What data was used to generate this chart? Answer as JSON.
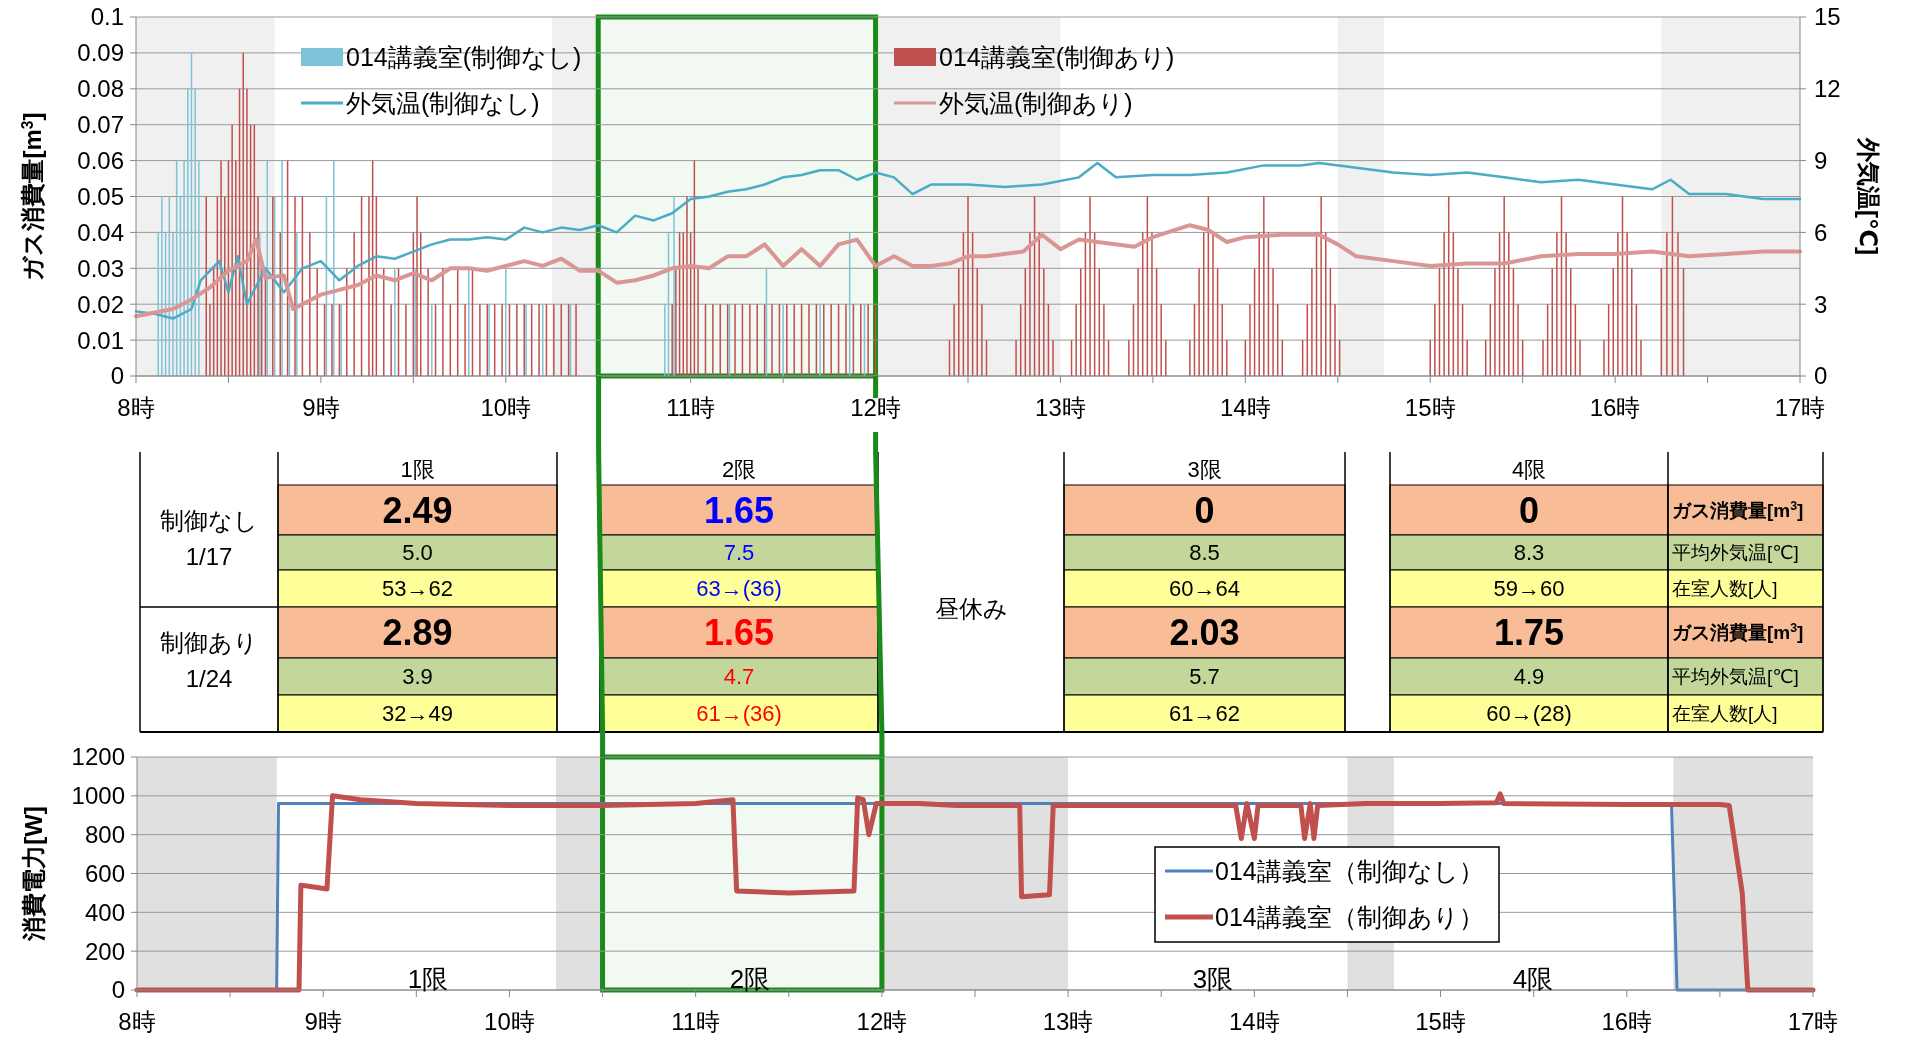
{
  "chart_data": [
    {
      "type": "bar",
      "xlim": [
        8,
        17
      ],
      "ylim": [
        0,
        0.1
      ],
      "y2lim": [
        0,
        15
      ],
      "xticks": [
        {
          "value": 8,
          "label": "8時"
        },
        {
          "value": 8.5,
          "label": null
        },
        {
          "value": 9,
          "label": "9時"
        },
        {
          "value": 9.5,
          "label": null
        },
        {
          "value": 10,
          "label": "10時"
        },
        {
          "value": 10.5,
          "label": null
        },
        {
          "value": 11,
          "label": "11時"
        },
        {
          "value": 11.5,
          "label": null
        },
        {
          "value": 12,
          "label": "12時"
        },
        {
          "value": 12.5,
          "label": null
        },
        {
          "value": 13,
          "label": "13時"
        },
        {
          "value": 13.5,
          "label": null
        },
        {
          "value": 14,
          "label": "14時"
        },
        {
          "value": 14.5,
          "label": null
        },
        {
          "value": 15,
          "label": "15時"
        },
        {
          "value": 15.5,
          "label": null
        },
        {
          "value": 16,
          "label": "16時"
        },
        {
          "value": 16.5,
          "label": null
        },
        {
          "value": 17,
          "label": "17時"
        }
      ],
      "yticks": [
        0,
        0.01,
        0.02,
        0.03,
        0.04,
        0.05,
        0.06,
        0.07,
        0.08,
        0.09,
        0.1
      ],
      "y2ticks": [
        0,
        3,
        6,
        9,
        12,
        15
      ],
      "ylabel": "ガス消費量[m$^{3}$]",
      "y2label": "外気温[℃]",
      "grid": "y",
      "legend": "top",
      "bands": [
        {
          "axis": "x",
          "from": 8,
          "to": 8.75,
          "color": "#f0f0f0"
        },
        {
          "axis": "x",
          "from": 10.25,
          "to": 10.5,
          "color": "#f0f0f0"
        },
        {
          "axis": "x",
          "from": 12,
          "to": 13,
          "color": "#f0f0f0"
        },
        {
          "axis": "x",
          "from": 14.5,
          "to": 14.75,
          "color": "#f0f0f0"
        },
        {
          "axis": "x",
          "from": 16.25,
          "to": 17,
          "color": "#f0f0f0"
        },
        {
          "axis": "x",
          "from": 10.5,
          "to": 12,
          "color": "#1a8a1a"
        }
      ],
      "series": [
        {
          "name": "014講義室(制御なし)",
          "type": "bar",
          "color": "#7fc3d8",
          "x": [
            8.12,
            8.14,
            8.16,
            8.18,
            8.2,
            8.22,
            8.24,
            8.26,
            8.28,
            8.3,
            8.32,
            8.34,
            8.67,
            8.71,
            8.75,
            8.79,
            8.83,
            8.87,
            9.03,
            9.07,
            9.11,
            9.4,
            9.51,
            9.6,
            9.8,
            9.91,
            10,
            10.11,
            10.2,
            10.35,
            10.86,
            10.88,
            10.91,
            11.21,
            11.41,
            11.5,
            11.7,
            11.86,
            11.94
          ],
          "values": [
            0.04,
            0.05,
            0.04,
            0.05,
            0.04,
            0.06,
            0.05,
            0.06,
            0.08,
            0.09,
            0.08,
            0.06,
            0.04,
            0.06,
            0.05,
            0.06,
            0.02,
            0.04,
            0.05,
            0.06,
            0.02,
            0.03,
            0.03,
            0.02,
            0.03,
            0.02,
            0.03,
            0.02,
            0.02,
            0.02,
            0.02,
            0.04,
            0.05,
            0.02,
            0.03,
            0.02,
            0.02,
            0.04,
            0.02
          ]
        },
        {
          "name": "014講義室(制御あり)",
          "type": "bar",
          "color": "#c0504d",
          "x": [
            8.38,
            8.4,
            8.42,
            8.44,
            8.46,
            8.48,
            8.5,
            8.52,
            8.54,
            8.56,
            8.58,
            8.6,
            8.62,
            8.64,
            8.66,
            8.68,
            8.7,
            8.74,
            8.78,
            8.82,
            8.86,
            8.9,
            8.94,
            8.98,
            9.02,
            9.06,
            9.1,
            9.14,
            9.18,
            9.22,
            9.26,
            9.28,
            9.3,
            9.34,
            9.38,
            9.42,
            9.46,
            9.5,
            9.52,
            9.54,
            9.58,
            9.62,
            9.66,
            9.7,
            9.74,
            9.78,
            9.82,
            9.86,
            9.9,
            9.94,
            9.98,
            10.02,
            10.06,
            10.1,
            10.14,
            10.18,
            10.22,
            10.26,
            10.3,
            10.34,
            10.38,
            10.9,
            10.92,
            10.94,
            10.96,
            10.98,
            11,
            11.02,
            11.04,
            11.08,
            11.12,
            11.16,
            11.2,
            11.24,
            11.28,
            11.32,
            11.36,
            11.4,
            11.44,
            11.48,
            11.52,
            11.56,
            11.6,
            11.64,
            11.68,
            11.72,
            11.76,
            11.8,
            11.84,
            11.88,
            11.92,
            11.96,
            12,
            12.4,
            12.425,
            12.45,
            12.475,
            12.5,
            12.525,
            12.55,
            12.575,
            12.6,
            12.76,
            12.785,
            12.81,
            12.835,
            12.86,
            12.885,
            12.91,
            12.935,
            12.96,
            13.06,
            13.085,
            13.11,
            13.135,
            13.16,
            13.185,
            13.21,
            13.235,
            13.26,
            13.37,
            13.395,
            13.42,
            13.445,
            13.47,
            13.495,
            13.52,
            13.545,
            13.57,
            13.7,
            13.725,
            13.75,
            13.775,
            13.8,
            13.825,
            13.85,
            13.875,
            13.9,
            14,
            14.025,
            14.05,
            14.075,
            14.1,
            14.125,
            14.15,
            14.175,
            14.2,
            14.31,
            14.335,
            14.36,
            14.385,
            14.41,
            14.435,
            14.46,
            14.485,
            14.51,
            15,
            15.025,
            15.05,
            15.075,
            15.1,
            15.125,
            15.15,
            15.175,
            15.2,
            15.3,
            15.325,
            15.35,
            15.375,
            15.4,
            15.425,
            15.45,
            15.475,
            15.5,
            15.61,
            15.635,
            15.66,
            15.685,
            15.71,
            15.735,
            15.76,
            15.785,
            15.81,
            15.94,
            15.965,
            15.99,
            16.015,
            16.04,
            16.065,
            16.09,
            16.115,
            16.14,
            16.25,
            16.28,
            16.31,
            16.34,
            16.37
          ],
          "values": [
            0.05,
            0.02,
            0.03,
            0.05,
            0.06,
            0.05,
            0.06,
            0.07,
            0.06,
            0.08,
            0.09,
            0.08,
            0.07,
            0.07,
            0.05,
            0.03,
            0.03,
            0.05,
            0.04,
            0.06,
            0.05,
            0.05,
            0.04,
            0.03,
            0.02,
            0.02,
            0.02,
            0.03,
            0.04,
            0.05,
            0.05,
            0.06,
            0.05,
            0.03,
            0.02,
            0.03,
            0.02,
            0.04,
            0.05,
            0.04,
            0.03,
            0.02,
            0.03,
            0.02,
            0.03,
            0.02,
            0.03,
            0.02,
            0.02,
            0.02,
            0.02,
            0.02,
            0.02,
            0.02,
            0.02,
            0.02,
            0.02,
            0.02,
            0.02,
            0.02,
            0.02,
            0.02,
            0.03,
            0.04,
            0.04,
            0.05,
            0.04,
            0.06,
            0.03,
            0.02,
            0.02,
            0.02,
            0.02,
            0.02,
            0.02,
            0.02,
            0.02,
            0.02,
            0.02,
            0.02,
            0.02,
            0.02,
            0.02,
            0.02,
            0.02,
            0.02,
            0.02,
            0.02,
            0.02,
            0.02,
            0.02,
            0.02,
            0.02,
            0.01,
            0.02,
            0.03,
            0.04,
            0.05,
            0.04,
            0.03,
            0.02,
            0.01,
            0.01,
            0.02,
            0.03,
            0.04,
            0.05,
            0.04,
            0.03,
            0.02,
            0.01,
            0.01,
            0.02,
            0.03,
            0.04,
            0.05,
            0.04,
            0.03,
            0.02,
            0.01,
            0.01,
            0.02,
            0.03,
            0.04,
            0.05,
            0.04,
            0.03,
            0.02,
            0.01,
            0.01,
            0.02,
            0.03,
            0.04,
            0.05,
            0.04,
            0.03,
            0.02,
            0.01,
            0.01,
            0.02,
            0.03,
            0.04,
            0.05,
            0.04,
            0.03,
            0.02,
            0.01,
            0.01,
            0.02,
            0.03,
            0.04,
            0.05,
            0.04,
            0.03,
            0.02,
            0.01,
            0.01,
            0.02,
            0.03,
            0.04,
            0.05,
            0.04,
            0.03,
            0.02,
            0.01,
            0.01,
            0.02,
            0.03,
            0.04,
            0.05,
            0.04,
            0.03,
            0.02,
            0.01,
            0.01,
            0.02,
            0.03,
            0.04,
            0.05,
            0.04,
            0.03,
            0.02,
            0.01,
            0.01,
            0.02,
            0.03,
            0.04,
            0.05,
            0.04,
            0.03,
            0.02,
            0.01,
            0.03,
            0.04,
            0.05,
            0.04,
            0.03
          ]
        },
        {
          "name": "外気温(制御なし)",
          "type": "line",
          "axis": "y2",
          "color": "#4bacc6",
          "x": [
            8,
            8.1,
            8.2,
            8.3,
            8.35,
            8.45,
            8.5,
            8.55,
            8.6,
            8.7,
            8.8,
            8.9,
            9,
            9.1,
            9.2,
            9.3,
            9.4,
            9.5,
            9.6,
            9.7,
            9.8,
            9.9,
            10,
            10.1,
            10.2,
            10.3,
            10.4,
            10.5,
            10.6,
            10.7,
            10.8,
            10.9,
            11,
            11.1,
            11.2,
            11.3,
            11.4,
            11.5,
            11.6,
            11.7,
            11.8,
            11.9,
            12,
            12.1,
            12.2,
            12.3,
            12.5,
            12.7,
            12.9,
            13.1,
            13.2,
            13.3,
            13.5,
            13.7,
            13.9,
            14.1,
            14.3,
            14.4,
            14.6,
            14.8,
            15,
            15.2,
            15.4,
            15.6,
            15.8,
            16,
            16.2,
            16.3,
            16.4,
            16.6,
            16.8,
            17
          ],
          "values": [
            2.7,
            2.6,
            2.4,
            2.8,
            4,
            4.8,
            3.5,
            5,
            3,
            4.5,
            3.5,
            4.5,
            4.8,
            4,
            4.6,
            5,
            4.9,
            5.2,
            5.5,
            5.7,
            5.7,
            5.8,
            5.7,
            6.2,
            6,
            6.2,
            6.1,
            6.3,
            6,
            6.7,
            6.5,
            6.8,
            7.4,
            7.5,
            7.7,
            7.8,
            8,
            8.3,
            8.4,
            8.6,
            8.6,
            8.2,
            8.5,
            8.3,
            7.6,
            8,
            8,
            7.9,
            8,
            8.3,
            8.9,
            8.3,
            8.4,
            8.4,
            8.5,
            8.8,
            8.8,
            8.9,
            8.7,
            8.5,
            8.4,
            8.5,
            8.3,
            8.1,
            8.2,
            8,
            7.8,
            8.2,
            7.6,
            7.6,
            7.4,
            7.4
          ]
        },
        {
          "name": "外気温(制御あり)",
          "type": "line",
          "axis": "y2",
          "color": "#d99694",
          "x": [
            8,
            8.2,
            8.3,
            8.4,
            8.5,
            8.6,
            8.65,
            8.7,
            8.8,
            8.85,
            8.9,
            9,
            9.1,
            9.2,
            9.3,
            9.4,
            9.5,
            9.6,
            9.7,
            9.8,
            9.9,
            10,
            10.1,
            10.2,
            10.3,
            10.4,
            10.5,
            10.6,
            10.7,
            10.8,
            10.9,
            11,
            11.1,
            11.2,
            11.3,
            11.4,
            11.5,
            11.6,
            11.7,
            11.8,
            11.9,
            12,
            12.1,
            12.2,
            12.3,
            12.4,
            12.5,
            12.6,
            12.8,
            12.9,
            13,
            13.1,
            13.2,
            13.4,
            13.5,
            13.7,
            13.8,
            13.9,
            14,
            14.2,
            14.4,
            14.5,
            14.6,
            14.8,
            15,
            15.2,
            15.4,
            15.6,
            15.8,
            16,
            16.2,
            16.4,
            16.6,
            16.8,
            17
          ],
          "values": [
            2.5,
            2.8,
            3.2,
            3.7,
            4.4,
            4.8,
            5.7,
            4.1,
            4.2,
            2.8,
            3,
            3.4,
            3.6,
            3.8,
            4.2,
            4,
            4.3,
            4,
            4.5,
            4.5,
            4.4,
            4.6,
            4.8,
            4.6,
            4.9,
            4.4,
            4.4,
            3.9,
            4,
            4.2,
            4.5,
            4.6,
            4.5,
            5,
            5,
            5.5,
            4.6,
            5.3,
            4.6,
            5.5,
            5.7,
            4.6,
            5,
            4.6,
            4.6,
            4.7,
            5,
            5,
            5.2,
            5.9,
            5.3,
            5.7,
            5.6,
            5.4,
            5.8,
            6.3,
            6.1,
            5.6,
            5.8,
            5.9,
            5.9,
            5.5,
            5,
            4.8,
            4.6,
            4.7,
            4.7,
            5,
            5.1,
            5.1,
            5.2,
            5,
            5.1,
            5.2,
            5.2
          ]
        }
      ]
    },
    {
      "type": "other",
      "categories": [
        "1限",
        "2限",
        "3限",
        "4限"
      ],
      "y2_categories": [
        "ガス消費量[m$^{3}$]",
        "平均外気温[℃]",
        "在室人数[人]",
        "ガス消費量[m$^{3}$]",
        "平均外気温[℃]",
        "在室人数[人]"
      ],
      "cell_labels": [
        [
          "2.49",
          "1.65",
          "0",
          "0"
        ],
        [
          "5.0",
          "7.5",
          "8.5",
          "8.3"
        ],
        [
          "53→62",
          "63→(36)",
          "60→64",
          "59→60"
        ],
        [
          "2.89",
          "1.65",
          "2.03",
          "1.75"
        ],
        [
          "3.9",
          "4.7",
          "5.7",
          "4.9"
        ],
        [
          "32→49",
          "61→(36)",
          "61→62",
          "60→(28)"
        ]
      ],
      "annotations": [
        "制御なし",
        "1/17",
        "制御あり",
        "1/24",
        "昼休み"
      ]
    },
    {
      "type": "line",
      "xlim": [
        8,
        17
      ],
      "ylim": [
        0,
        1200
      ],
      "xticks": [
        {
          "value": 8,
          "label": "8時"
        },
        {
          "value": 8.5,
          "label": null
        },
        {
          "value": 9,
          "label": "9時"
        },
        {
          "value": 9.5,
          "label": null
        },
        {
          "value": 10,
          "label": "10時"
        },
        {
          "value": 10.5,
          "label": null
        },
        {
          "value": 11,
          "label": "11時"
        },
        {
          "value": 11.5,
          "label": null
        },
        {
          "value": 12,
          "label": "12時"
        },
        {
          "value": 12.5,
          "label": null
        },
        {
          "value": 13,
          "label": "13時"
        },
        {
          "value": 13.5,
          "label": null
        },
        {
          "value": 14,
          "label": "14時"
        },
        {
          "value": 14.5,
          "label": null
        },
        {
          "value": 15,
          "label": "15時"
        },
        {
          "value": 15.5,
          "label": null
        },
        {
          "value": 16,
          "label": "16時"
        },
        {
          "value": 16.5,
          "label": null
        },
        {
          "value": 17,
          "label": "17時"
        }
      ],
      "yticks": [
        0,
        200,
        400,
        600,
        800,
        1000,
        1200
      ],
      "ylabel": "消費電力[W]",
      "grid": "y",
      "legend": "bottom right",
      "bands": [
        {
          "axis": "x",
          "from": 8,
          "to": 8.75,
          "color": "#e0e0e0"
        },
        {
          "axis": "x",
          "from": 10.25,
          "to": 10.5,
          "color": "#e0e0e0"
        },
        {
          "axis": "x",
          "from": 12,
          "to": 13,
          "color": "#e0e0e0"
        },
        {
          "axis": "x",
          "from": 14.5,
          "to": 14.75,
          "color": "#e0e0e0"
        },
        {
          "axis": "x",
          "from": 16.25,
          "to": 17,
          "color": "#e0e0e0"
        },
        {
          "axis": "x",
          "from": 10.5,
          "to": 12,
          "color": "#1a8a1a"
        }
      ],
      "annotations": [
        "1限",
        "2限",
        "3限",
        "4限"
      ],
      "series": [
        {
          "name": "014講義室（制御なし）",
          "color": "#4f81bd",
          "x": [
            8,
            8.75,
            8.76,
            16.24,
            16.27,
            17
          ],
          "values": [
            0,
            0,
            960,
            960,
            0,
            0
          ]
        },
        {
          "name": "014講義室（制御あり）",
          "color": "#c0504d",
          "x": [
            8,
            8.87,
            8.88,
            8.95,
            9.02,
            9.05,
            9.2,
            9.5,
            10,
            10.5,
            11,
            11.2,
            11.22,
            11.5,
            11.85,
            11.87,
            11.9,
            11.93,
            11.97,
            12.2,
            12.4,
            12.6,
            12.74,
            12.75,
            12.9,
            12.92,
            13.2,
            13.9,
            13.93,
            13.96,
            14,
            14.02,
            14.25,
            14.27,
            14.3,
            14.32,
            14.34,
            14.6,
            15,
            15.3,
            15.32,
            15.34,
            16,
            16.5,
            16.55,
            16.62,
            16.65,
            17
          ],
          "values": [
            0,
            0,
            540,
            530,
            520,
            1000,
            980,
            960,
            950,
            950,
            960,
            980,
            510,
            500,
            510,
            990,
            980,
            800,
            960,
            960,
            950,
            950,
            950,
            480,
            490,
            950,
            950,
            950,
            780,
            960,
            780,
            950,
            950,
            780,
            960,
            780,
            950,
            960,
            960,
            965,
            1010,
            960,
            955,
            955,
            950,
            500,
            0,
            0
          ]
        }
      ]
    }
  ]
}
